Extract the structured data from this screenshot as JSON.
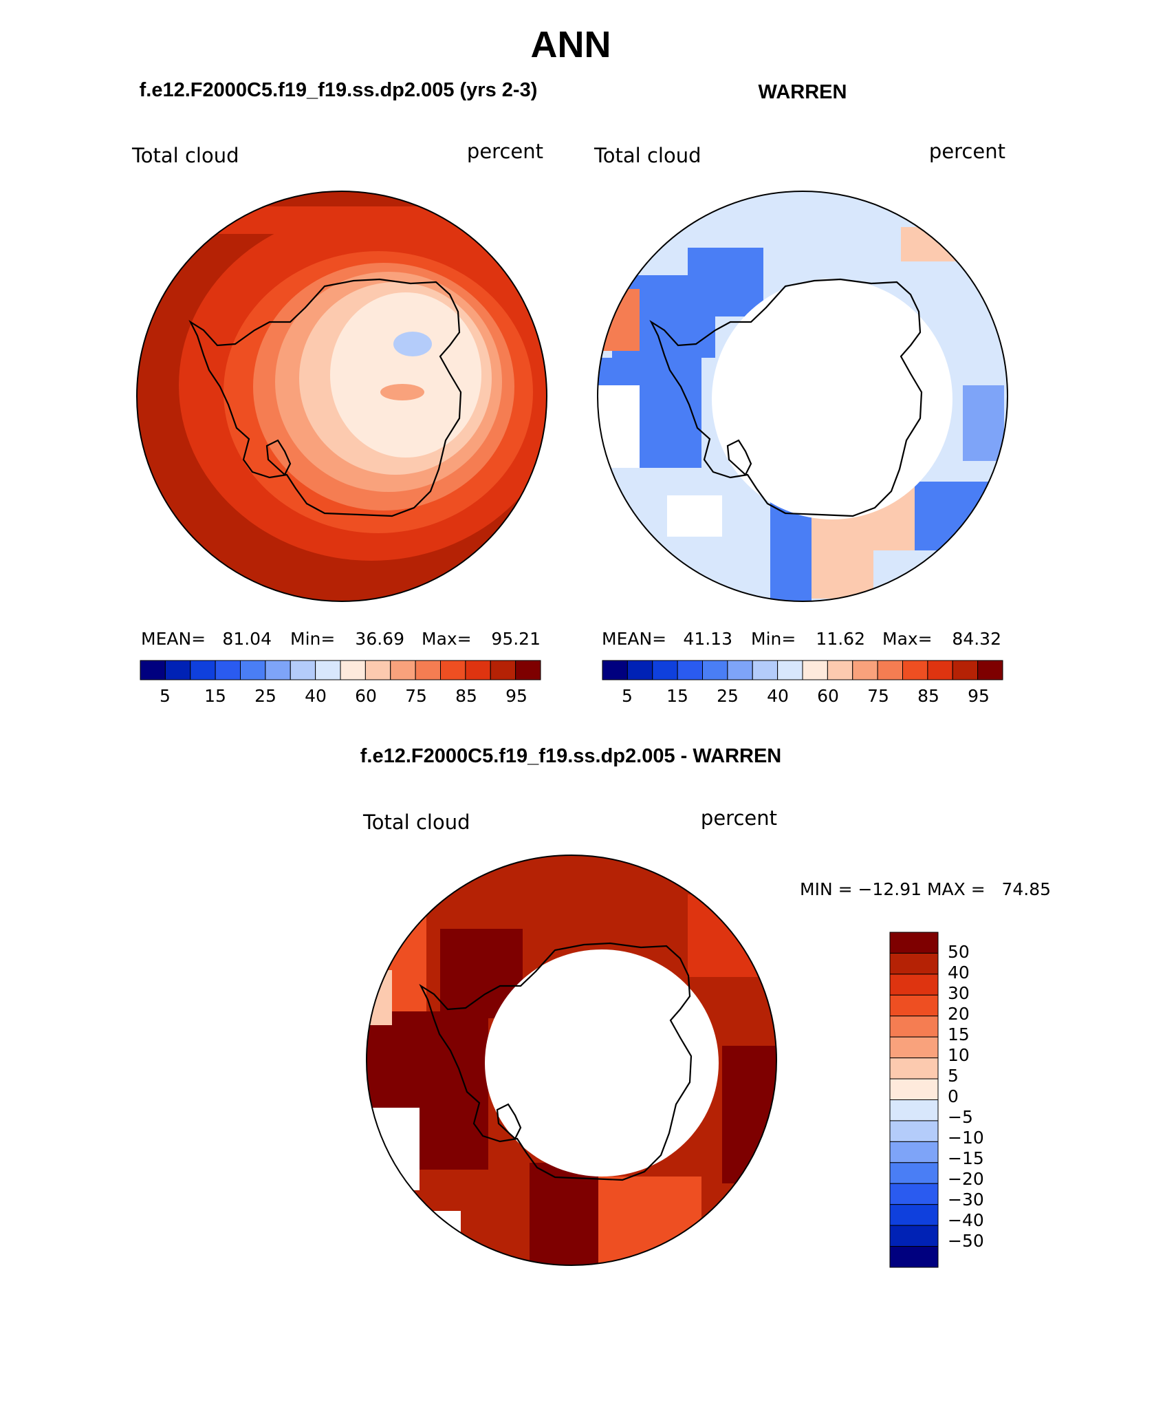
{
  "title": "ANN",
  "colors": {
    "scale": [
      "#00007f",
      "#0022b5",
      "#0f40dd",
      "#2a5bf0",
      "#4a7ef5",
      "#7ea4f8",
      "#b4ccfa",
      "#d8e7fc",
      "#feeadc",
      "#fccaaf",
      "#f9a27c",
      "#f57d52",
      "#ee4f22",
      "#de3410",
      "#b52205",
      "#7e0000"
    ],
    "diff": [
      "#00007f",
      "#0022b5",
      "#0f40dd",
      "#2a5bf0",
      "#4a7ef5",
      "#7ea4f8",
      "#b4ccfa",
      "#d8e7fc",
      "#feeadc",
      "#fccaaf",
      "#f9a27c",
      "#f57d52",
      "#ee4f22",
      "#de3410",
      "#b52205",
      "#7e0000"
    ],
    "land": "#000000"
  },
  "panels": {
    "model": {
      "title": "f.e12.F2000C5.f19_f19.ss.dp2.005 (yrs 2-3)",
      "variable": "Total cloud",
      "units": "percent",
      "stats": {
        "mean_label": "MEAN=",
        "mean": "81.04",
        "min_label": "Min=",
        "min": "36.69",
        "max_label": "Max=",
        "max": "95.21"
      }
    },
    "obs": {
      "title": "WARREN",
      "variable": "Total cloud",
      "units": "percent",
      "stats": {
        "mean_label": "MEAN=",
        "mean": "41.13",
        "min_label": "Min=",
        "min": "11.62",
        "max_label": "Max=",
        "max": "84.32"
      }
    },
    "diff": {
      "title": "f.e12.F2000C5.f19_f19.ss.dp2.005 - WARREN",
      "variable": "Total cloud",
      "units": "percent",
      "minmax": "MIN = −12.91 MAX =   74.85"
    }
  },
  "colorbars": {
    "horizontal_labels": [
      "5",
      "15",
      "25",
      "40",
      "60",
      "75",
      "85",
      "95"
    ],
    "vertical_labels": [
      "50",
      "40",
      "30",
      "20",
      "15",
      "10",
      "5",
      "0",
      "−5",
      "−10",
      "−15",
      "−20",
      "−30",
      "−40",
      "−50"
    ]
  }
}
